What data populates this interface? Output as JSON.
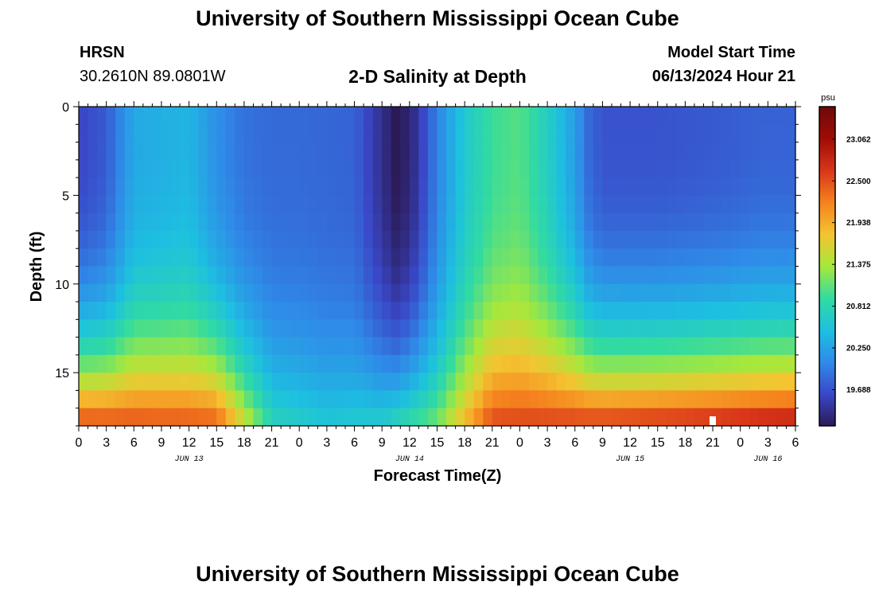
{
  "header": {
    "title": "University of Southern Mississippi Ocean Cube",
    "station": "HRSN",
    "coordinates": "30.2610N  89.0801W",
    "subtitle": "2-D Salinity at Depth",
    "start_label": "Model Start Time",
    "start_time": "06/13/2024 Hour 21"
  },
  "footer": {
    "title": "University of Southern Mississippi Ocean Cube"
  },
  "chart_data": {
    "type": "heatmap",
    "title": "2-D Salinity at Depth",
    "xlabel": "Forecast Time(Z)",
    "ylabel": "Depth (ft)",
    "x_hours_from_jun13_00z": [
      0,
      78
    ],
    "x_tick_labels": [
      "0",
      "3",
      "6",
      "9",
      "12",
      "15",
      "18",
      "21",
      "0",
      "3",
      "6",
      "9",
      "12",
      "15",
      "18",
      "21",
      "0",
      "3",
      "6",
      "9",
      "12",
      "15",
      "18",
      "21",
      "0",
      "3",
      "6"
    ],
    "day_labels": [
      {
        "label": "JUN 13",
        "hour": 12
      },
      {
        "label": "JUN 14",
        "hour": 36
      },
      {
        "label": "JUN 15",
        "hour": 60
      },
      {
        "label": "JUN 16",
        "hour": 75
      }
    ],
    "y_ticks": [
      0,
      5,
      10,
      15
    ],
    "ylim": [
      0,
      18
    ],
    "units": "psu",
    "value_range": [
      19.2,
      23.5
    ],
    "colorbar_ticks": [
      "23.062",
      "22.500",
      "21.938",
      "21.375",
      "20.812",
      "20.250",
      "19.688"
    ],
    "colorbar_tick_values": [
      23.062,
      22.5,
      21.938,
      21.375,
      20.812,
      20.25,
      19.688
    ],
    "colorscale": [
      "#2b1a57",
      "#3a48c8",
      "#2f8be8",
      "#1dc0e0",
      "#32dba0",
      "#a6e83c",
      "#f4c431",
      "#f5821e",
      "#d9361a",
      "#9e0c05",
      "#6e0a0a"
    ],
    "model_start_hour": 21,
    "surface_by_hour": [
      [
        0,
        19.6
      ],
      [
        3,
        19.75
      ],
      [
        6,
        20.3
      ],
      [
        9,
        20.35
      ],
      [
        12,
        20.4
      ],
      [
        15,
        20.1
      ],
      [
        18,
        19.9
      ],
      [
        21,
        19.85
      ],
      [
        24,
        19.85
      ],
      [
        30,
        19.8
      ],
      [
        33,
        19.4
      ],
      [
        34.5,
        19.2
      ],
      [
        36,
        19.3
      ],
      [
        37,
        19.5
      ],
      [
        39,
        20.0
      ],
      [
        42,
        20.6
      ],
      [
        45,
        20.95
      ],
      [
        48,
        21.05
      ],
      [
        51,
        20.7
      ],
      [
        54,
        20.2
      ],
      [
        55.5,
        19.85
      ],
      [
        57,
        19.7
      ],
      [
        63,
        19.7
      ],
      [
        70,
        19.75
      ],
      [
        74,
        19.8
      ],
      [
        78,
        19.8
      ]
    ],
    "bottom_by_hour": [
      [
        0,
        22.6
      ],
      [
        15,
        22.5
      ],
      [
        18,
        21.6
      ],
      [
        21,
        20.8
      ],
      [
        27,
        20.6
      ],
      [
        33,
        20.7
      ],
      [
        39,
        21.2
      ],
      [
        45,
        22.6
      ],
      [
        57,
        22.7
      ],
      [
        66,
        22.8
      ],
      [
        72,
        22.9
      ],
      [
        78,
        23.0
      ]
    ],
    "grid_dimensions": {
      "time_steps": 78,
      "depth_levels": 18
    }
  }
}
